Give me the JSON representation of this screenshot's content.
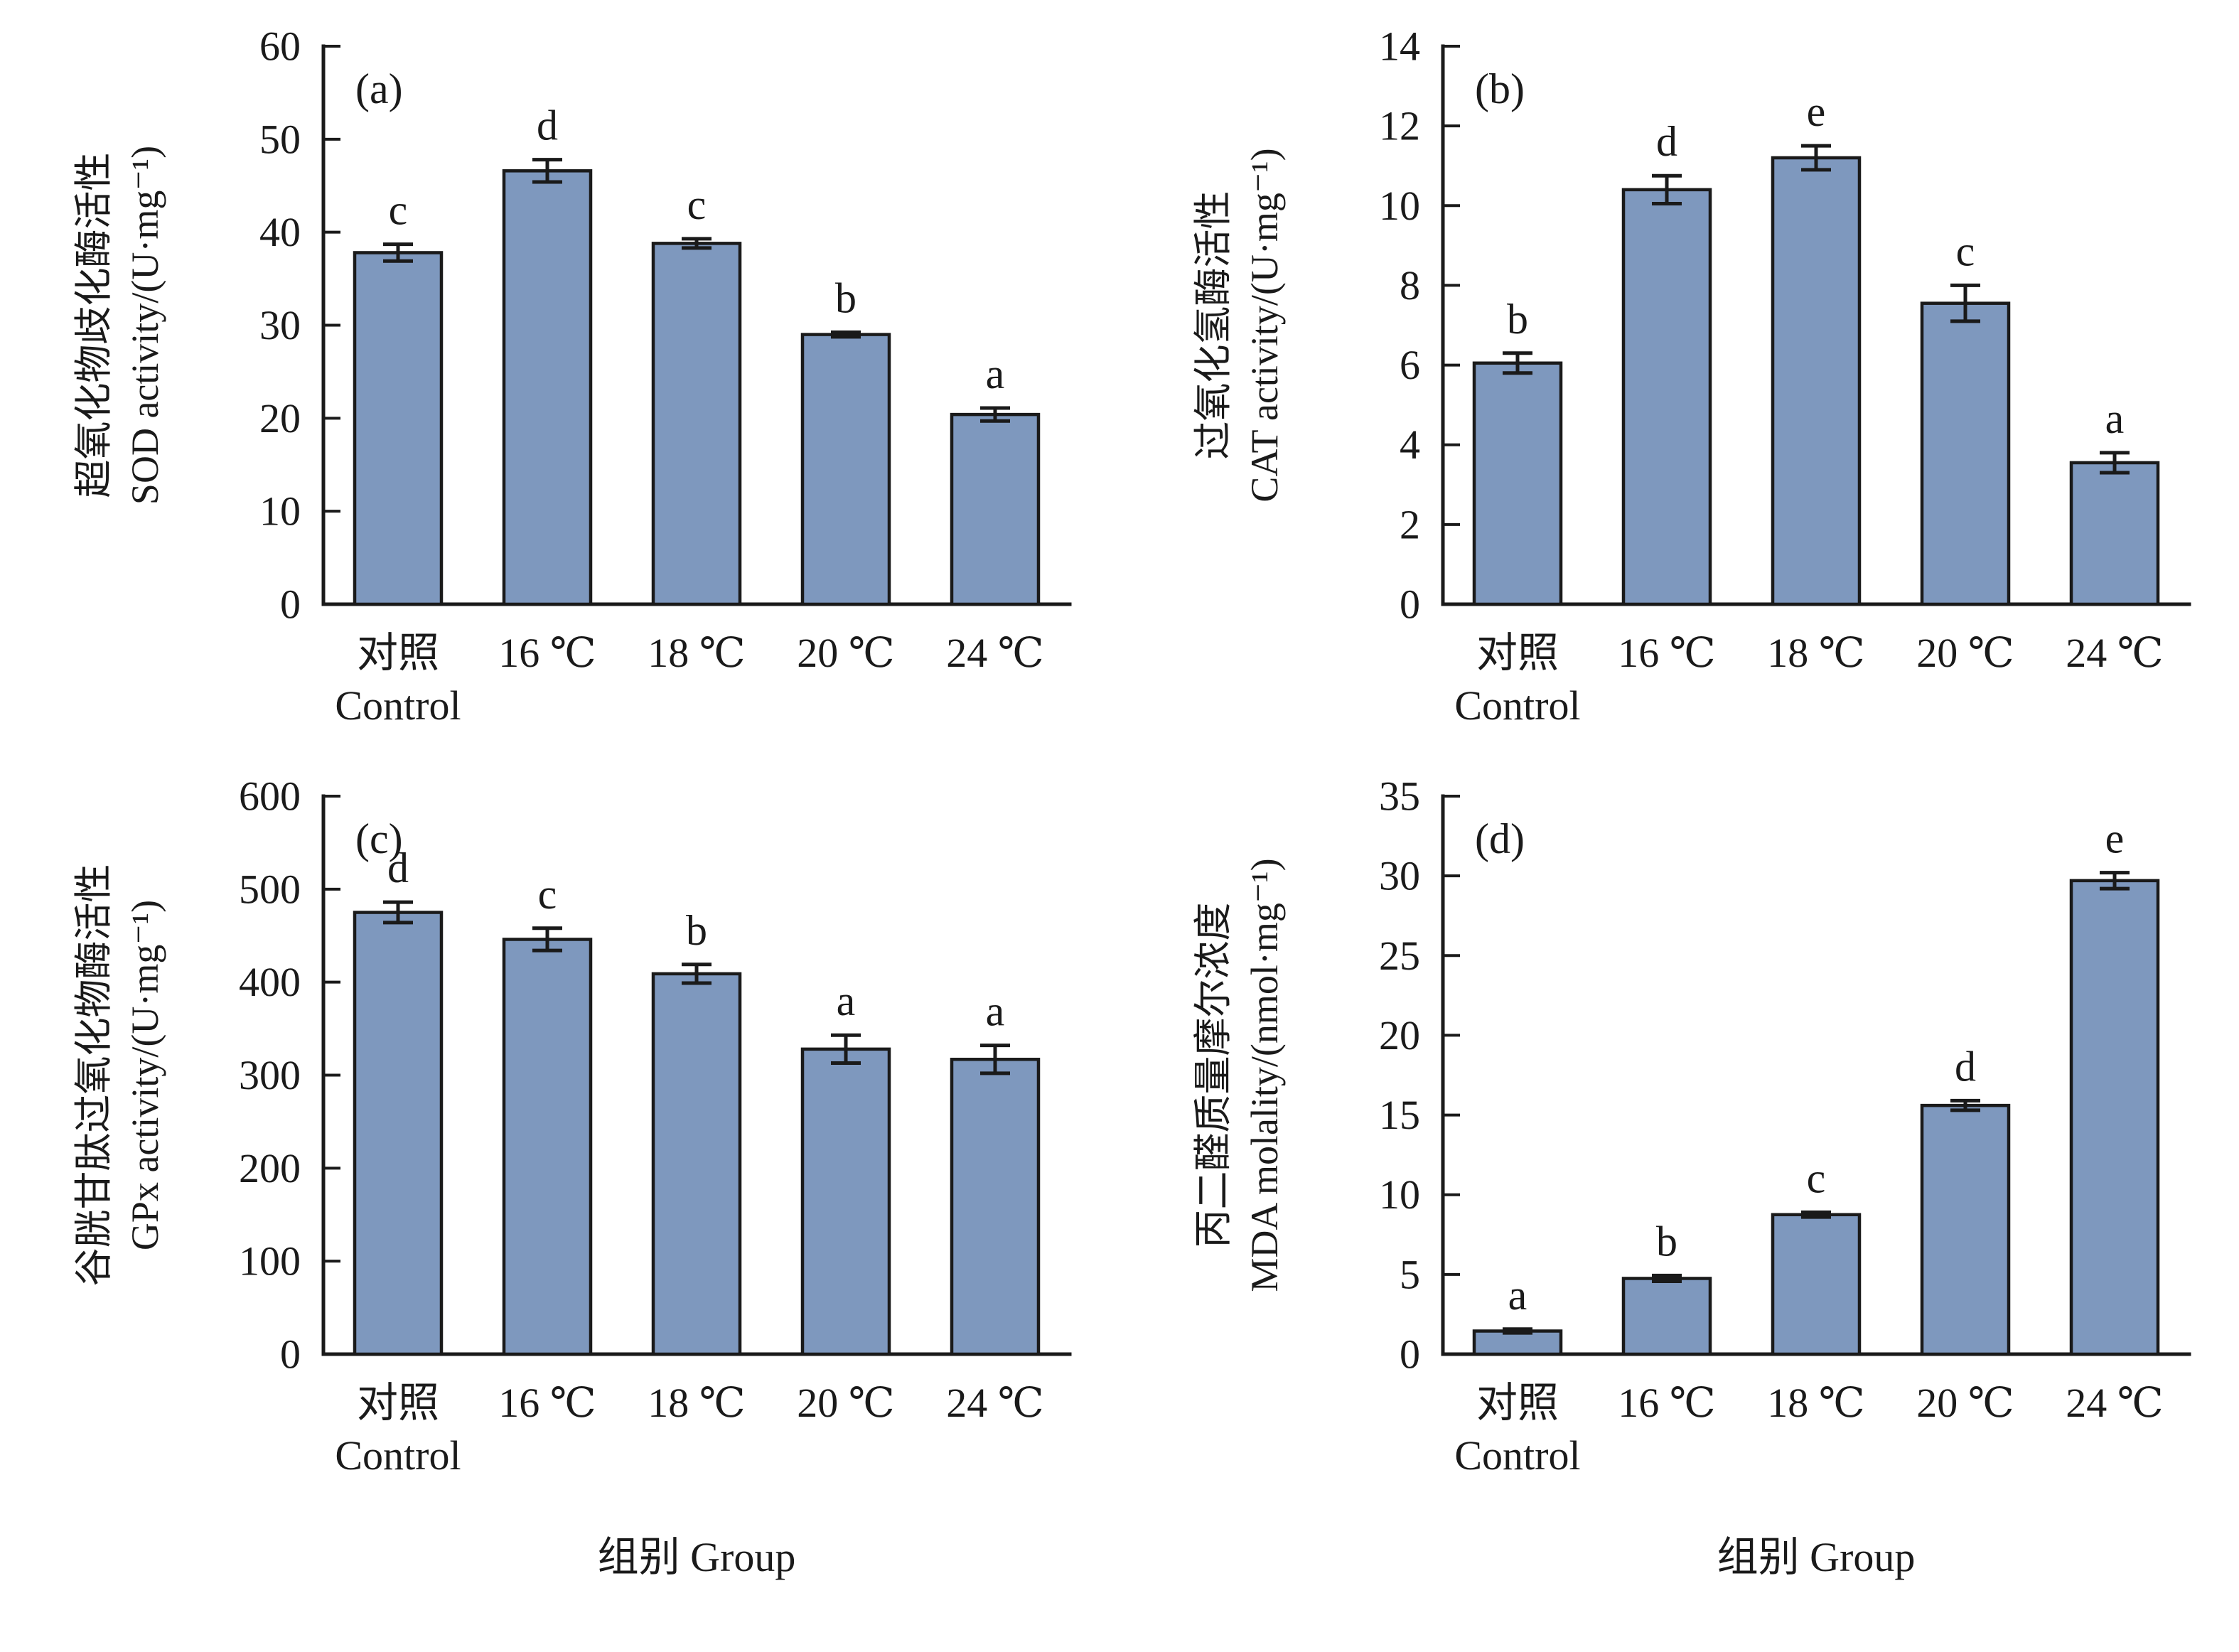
{
  "figure": {
    "background": "#ffffff",
    "bar_fill": "#7E98BE",
    "bar_stroke": "#1a1a1a",
    "axis_color": "#1a1a1a",
    "x_axis_title": "组别 Group"
  },
  "chart_data": [
    {
      "type": "bar",
      "panel_tag": "(a)",
      "ylabel_zh": "超氧化物歧化酶活性",
      "ylabel_en": "SOD activity/(U·mg⁻¹)",
      "categories": [
        "对照",
        "16 ℃",
        "18 ℃",
        "20 ℃",
        "24 ℃"
      ],
      "categories_line2": [
        "Control",
        "",
        "",
        "",
        ""
      ],
      "values": [
        37.8,
        46.6,
        38.8,
        29.0,
        20.4
      ],
      "errors": [
        0.9,
        1.2,
        0.5,
        0.25,
        0.7
      ],
      "letters": [
        "c",
        "d",
        "c",
        "b",
        "a"
      ],
      "ylim": [
        0,
        60
      ],
      "ytick_step": 10,
      "x_axis_title": "",
      "grid": false,
      "legend": "none"
    },
    {
      "type": "bar",
      "panel_tag": "(b)",
      "ylabel_zh": "过氧化氢酶活性",
      "ylabel_en": "CAT activity/(U·mg⁻¹)",
      "categories": [
        "对照",
        "16 ℃",
        "18 ℃",
        "20 ℃",
        "24 ℃"
      ],
      "categories_line2": [
        "Control",
        "",
        "",
        "",
        ""
      ],
      "values": [
        6.05,
        10.4,
        11.2,
        7.55,
        3.55
      ],
      "errors": [
        0.25,
        0.35,
        0.3,
        0.45,
        0.25
      ],
      "letters": [
        "b",
        "d",
        "e",
        "c",
        "a"
      ],
      "ylim": [
        0,
        14
      ],
      "ytick_step": 2,
      "x_axis_title": "",
      "grid": false,
      "legend": "none"
    },
    {
      "type": "bar",
      "panel_tag": "(c)",
      "ylabel_zh": "谷胱甘肽过氧化物酶活性",
      "ylabel_en": "GPx activity/(U·mg⁻¹)",
      "categories": [
        "对照",
        "16 ℃",
        "18 ℃",
        "20 ℃",
        "24 ℃"
      ],
      "categories_line2": [
        "Control",
        "",
        "",
        "",
        ""
      ],
      "values": [
        475,
        446,
        409,
        328,
        317
      ],
      "errors": [
        11,
        12,
        10,
        15,
        15
      ],
      "letters": [
        "d",
        "c",
        "b",
        "a",
        "a"
      ],
      "ylim": [
        0,
        600
      ],
      "ytick_step": 100,
      "x_axis_title": "组别 Group",
      "grid": false,
      "legend": "none"
    },
    {
      "type": "bar",
      "panel_tag": "(d)",
      "ylabel_zh": "丙二醛质量摩尔浓度",
      "ylabel_en": "MDA molality/(nmol·mg⁻¹)",
      "categories": [
        "对照",
        "16 ℃",
        "18 ℃",
        "20 ℃",
        "24 ℃"
      ],
      "categories_line2": [
        "Control",
        "",
        "",
        "",
        ""
      ],
      "values": [
        1.45,
        4.75,
        8.75,
        15.6,
        29.7
      ],
      "errors": [
        0.12,
        0.18,
        0.15,
        0.3,
        0.5
      ],
      "letters": [
        "a",
        "b",
        "c",
        "d",
        "e"
      ],
      "ylim": [
        0,
        35
      ],
      "ytick_step": 5,
      "x_axis_title": "组别 Group",
      "grid": false,
      "legend": "none"
    }
  ]
}
